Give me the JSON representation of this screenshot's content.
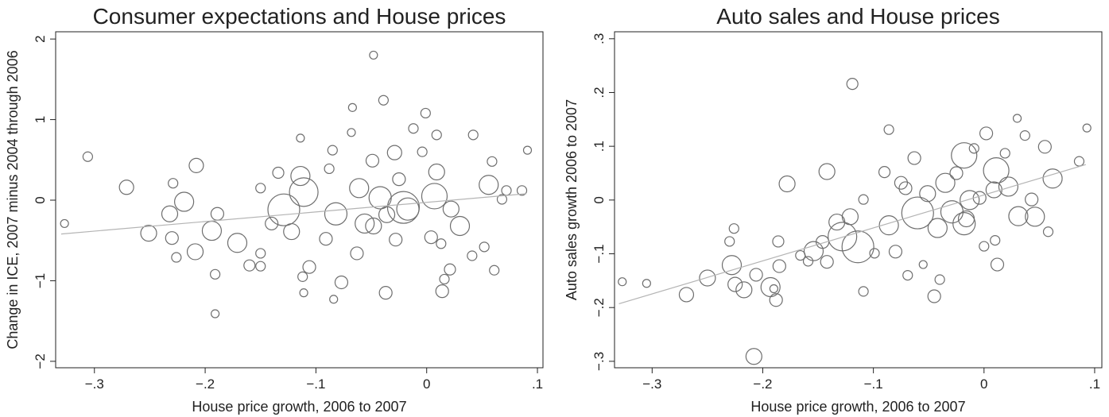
{
  "chart_data": [
    {
      "type": "scatter",
      "title": "Consumer expectations and House prices",
      "x_label": "House price growth, 2006 to 2007",
      "y_label": "Change in ICE, 2007 minus 2004 through 2006",
      "xlim": [
        -0.335,
        0.105
      ],
      "ylim": [
        -2.08,
        2.09
      ],
      "xticks": [
        {
          "value": -0.3,
          "label": "−.3"
        },
        {
          "value": -0.2,
          "label": "−.2"
        },
        {
          "value": -0.1,
          "label": "−.1"
        },
        0,
        {
          "value": 0.1,
          "label": ".1"
        }
      ],
      "yticks": [
        {
          "value": -2,
          "label": "−2"
        },
        {
          "value": -1,
          "label": "−1"
        },
        0,
        1,
        2
      ],
      "series": [
        {
          "color": "#6e6e6e",
          "x": [
            -0.327,
            -0.306,
            -0.271,
            -0.251,
            -0.23,
            -0.226,
            -0.229,
            -0.232,
            -0.219,
            -0.208,
            -0.209,
            -0.191,
            -0.191,
            -0.194,
            -0.189,
            -0.171,
            -0.16,
            -0.15,
            -0.15,
            -0.15,
            -0.129,
            -0.14,
            -0.134,
            -0.122,
            -0.111,
            -0.114,
            -0.114,
            -0.112,
            -0.111,
            -0.106,
            -0.091,
            -0.088,
            -0.085,
            -0.084,
            -0.077,
            -0.082,
            -0.067,
            -0.063,
            -0.068,
            -0.061,
            -0.056,
            -0.048,
            -0.048,
            -0.049,
            -0.042,
            -0.039,
            -0.036,
            -0.037,
            -0.029,
            -0.025,
            -0.028,
            -0.021,
            -0.012,
            -0.017,
            -0.004,
            -0.001,
            0.007,
            0.009,
            0.004,
            0.009,
            0.013,
            0.016,
            0.014,
            0.021,
            0.022,
            0.03,
            0.042,
            0.041,
            0.056,
            0.059,
            0.061,
            0.068,
            0.072,
            0.086,
            0.091,
            0.052
          ],
          "values": [
            -0.29,
            0.54,
            0.16,
            -0.41,
            -0.47,
            -0.71,
            0.21,
            -0.17,
            -0.02,
            0.43,
            -0.64,
            -0.92,
            -1.41,
            -0.38,
            -0.17,
            -0.53,
            -0.81,
            -0.66,
            0.15,
            -0.82,
            -0.12,
            -0.29,
            0.34,
            -0.39,
            0.1,
            0.3,
            0.77,
            -0.95,
            -1.15,
            -0.83,
            -0.48,
            0.39,
            0.62,
            -1.23,
            -1.02,
            -0.17,
            1.15,
            -0.66,
            0.84,
            0.15,
            -0.29,
            1.8,
            -0.32,
            0.49,
            0.03,
            1.24,
            -0.18,
            -1.15,
            0.59,
            0.26,
            -0.49,
            -0.09,
            0.89,
            -0.11,
            0.6,
            1.08,
            0.05,
            0.35,
            -0.46,
            0.81,
            -0.54,
            -0.98,
            -1.13,
            -0.86,
            -0.11,
            -0.32,
            0.81,
            -0.69,
            0.19,
            0.48,
            -0.87,
            0.01,
            0.12,
            0.12,
            0.62,
            -0.58
          ],
          "sizes": [
            5,
            6,
            9,
            10,
            8,
            6,
            6,
            10,
            12,
            9,
            10,
            6,
            5,
            12,
            8,
            12,
            7,
            6,
            6,
            6,
            20,
            8,
            7,
            10,
            18,
            12,
            5,
            6,
            5,
            8,
            8,
            6,
            6,
            5,
            8,
            14,
            5,
            8,
            5,
            12,
            12,
            5,
            10,
            8,
            14,
            6,
            10,
            8,
            9,
            8,
            8,
            20,
            6,
            14,
            6,
            6,
            16,
            10,
            8,
            6,
            6,
            6,
            8,
            7,
            10,
            12,
            6,
            6,
            12,
            6,
            6,
            6,
            6,
            6,
            5,
            6
          ]
        },
        {
          "type": "line",
          "color": "#b4b4b4",
          "x": [
            -0.33,
            0.09
          ],
          "values": [
            -0.42,
            0.08
          ]
        }
      ]
    },
    {
      "type": "scatter",
      "title": "Auto sales and House prices",
      "x_label": "House price growth, 2006 to 2007",
      "y_label": "Auto sales growth 2006 to 2007",
      "xlim": [
        -0.334,
        0.1065
      ],
      "ylim": [
        -0.312,
        0.313
      ],
      "xticks": [
        {
          "value": -0.3,
          "label": "−.3"
        },
        {
          "value": -0.2,
          "label": "−.2"
        },
        {
          "value": -0.1,
          "label": "−.1"
        },
        0,
        {
          "value": 0.1,
          "label": ".1"
        }
      ],
      "yticks": [
        {
          "value": -0.3,
          "label": "−.3"
        },
        {
          "value": -0.2,
          "label": "−.2"
        },
        {
          "value": -0.1,
          "label": "−.1"
        },
        0,
        {
          "value": 0.1,
          "label": ".1"
        },
        {
          "value": 0.2,
          "label": ".2"
        },
        {
          "value": 0.3,
          "label": ".3"
        }
      ],
      "series": [
        {
          "color": "#6e6e6e",
          "x": [
            -0.327,
            -0.305,
            -0.269,
            -0.25,
            -0.23,
            -0.228,
            -0.225,
            -0.226,
            -0.217,
            -0.208,
            -0.206,
            -0.193,
            -0.188,
            -0.19,
            -0.185,
            -0.186,
            -0.178,
            -0.166,
            -0.159,
            -0.154,
            -0.146,
            -0.142,
            -0.142,
            -0.133,
            -0.128,
            -0.121,
            -0.119,
            -0.114,
            -0.109,
            -0.109,
            -0.099,
            -0.09,
            -0.086,
            -0.086,
            -0.08,
            -0.075,
            -0.071,
            -0.063,
            -0.06,
            -0.069,
            -0.055,
            -0.051,
            -0.045,
            -0.042,
            -0.04,
            -0.035,
            -0.029,
            -0.025,
            -0.018,
            -0.016,
            -0.013,
            -0.009,
            -0.004,
            0,
            0.002,
            0.009,
            0.01,
            0.012,
            0.011,
            0.019,
            0.022,
            0.03,
            0.031,
            0.037,
            0.043,
            0.046,
            0.055,
            0.058,
            0.062,
            0.086,
            0.093,
            -0.018
          ],
          "values": [
            -0.152,
            -0.155,
            -0.176,
            -0.145,
            -0.077,
            -0.121,
            -0.157,
            -0.053,
            -0.167,
            -0.291,
            -0.139,
            -0.162,
            -0.186,
            -0.165,
            -0.123,
            -0.077,
            0.03,
            -0.103,
            -0.114,
            -0.095,
            -0.078,
            0.053,
            -0.115,
            -0.041,
            -0.068,
            -0.031,
            0.216,
            -0.087,
            0.001,
            -0.17,
            -0.099,
            0.052,
            -0.047,
            0.131,
            -0.096,
            0.032,
            0.022,
            0.078,
            -0.024,
            -0.14,
            -0.12,
            0.012,
            -0.179,
            -0.052,
            -0.148,
            0.032,
            -0.022,
            0.05,
            0.083,
            -0.035,
            0,
            0.096,
            0.004,
            -0.086,
            0.124,
            0.019,
            -0.075,
            -0.12,
            0.055,
            0.087,
            0.025,
            0.152,
            -0.03,
            0.12,
            0.001,
            -0.031,
            0.099,
            -0.059,
            0.04,
            0.072,
            0.134,
            -0.044
          ],
          "sizes": [
            5,
            5,
            9,
            10,
            6,
            12,
            9,
            6,
            10,
            10,
            8,
            12,
            8,
            5,
            8,
            7,
            10,
            6,
            6,
            12,
            8,
            10,
            8,
            10,
            18,
            10,
            7,
            20,
            6,
            6,
            6,
            7,
            12,
            6,
            8,
            8,
            8,
            8,
            20,
            6,
            5,
            10,
            8,
            12,
            6,
            12,
            14,
            8,
            16,
            10,
            12,
            6,
            8,
            6,
            8,
            10,
            6,
            8,
            16,
            6,
            12,
            5,
            12,
            6,
            8,
            12,
            8,
            6,
            12,
            6,
            5,
            14
          ]
        },
        {
          "type": "line",
          "color": "#b4b4b4",
          "x": [
            -0.33,
            0.092
          ],
          "values": [
            -0.193,
            0.066
          ]
        }
      ]
    }
  ]
}
